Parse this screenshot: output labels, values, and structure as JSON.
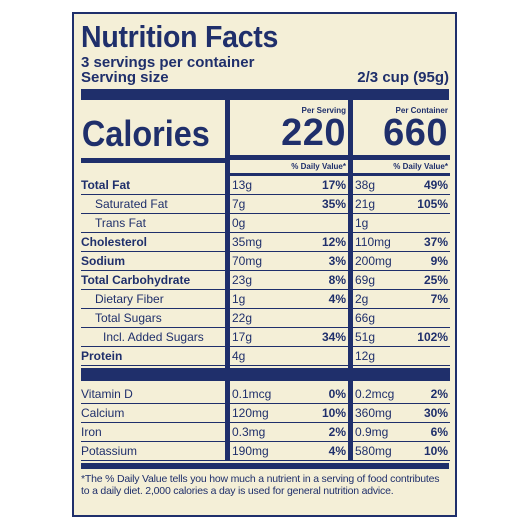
{
  "title": "Nutrition Facts",
  "servings_per_container": "3 servings per container",
  "serving_size_label": "Serving size",
  "serving_size_value": "2/3 cup (95g)",
  "calories_label": "Calories",
  "per_serving_label": "Per Serving",
  "per_container_label": "Per Container",
  "calories_per_serving": "220",
  "calories_per_container": "660",
  "dv_header": "% Daily Value*",
  "nutrients": [
    {
      "name": "Total Fat",
      "indent": 0,
      "s_amt": "13g",
      "s_dv": "17%",
      "c_amt": "38g",
      "c_dv": "49%"
    },
    {
      "name": "Saturated Fat",
      "indent": 1,
      "s_amt": "7g",
      "s_dv": "35%",
      "c_amt": "21g",
      "c_dv": "105%"
    },
    {
      "name": "Trans Fat",
      "indent": 1,
      "s_amt": "0g",
      "s_dv": "",
      "c_amt": "1g",
      "c_dv": ""
    },
    {
      "name": "Cholesterol",
      "indent": 0,
      "s_amt": "35mg",
      "s_dv": "12%",
      "c_amt": "110mg",
      "c_dv": "37%"
    },
    {
      "name": "Sodium",
      "indent": 0,
      "s_amt": "70mg",
      "s_dv": "3%",
      "c_amt": "200mg",
      "c_dv": "9%"
    },
    {
      "name": "Total Carbohydrate",
      "indent": 0,
      "s_amt": "23g",
      "s_dv": "8%",
      "c_amt": "69g",
      "c_dv": "25%"
    },
    {
      "name": "Dietary Fiber",
      "indent": 1,
      "s_amt": "1g",
      "s_dv": "4%",
      "c_amt": "2g",
      "c_dv": "7%"
    },
    {
      "name": "Total Sugars",
      "indent": 1,
      "s_amt": "22g",
      "s_dv": "",
      "c_amt": "66g",
      "c_dv": ""
    },
    {
      "name": "Incl. Added Sugars",
      "indent": 2,
      "s_amt": "17g",
      "s_dv": "34%",
      "c_amt": "51g",
      "c_dv": "102%"
    },
    {
      "name": "Protein",
      "indent": 0,
      "s_amt": "4g",
      "s_dv": "",
      "c_amt": "12g",
      "c_dv": ""
    }
  ],
  "vitamins": [
    {
      "name": "Vitamin D",
      "s_amt": "0.1mcg",
      "s_dv": "0%",
      "c_amt": "0.2mcg",
      "c_dv": "2%"
    },
    {
      "name": "Calcium",
      "s_amt": "120mg",
      "s_dv": "10%",
      "c_amt": "360mg",
      "c_dv": "30%"
    },
    {
      "name": "Iron",
      "s_amt": "0.3mg",
      "s_dv": "2%",
      "c_amt": "0.9mg",
      "c_dv": "6%"
    },
    {
      "name": "Potassium",
      "s_amt": "190mg",
      "s_dv": "4%",
      "c_amt": "580mg",
      "c_dv": "10%"
    }
  ],
  "footnote": "*The % Daily Value tells you how much a nutrient in a serving of food contributes to a daily diet. 2,000 calories a day is used for general nutrition advice.",
  "colors": {
    "ink": "#1f2f6b",
    "paper": "#f4efd7"
  }
}
